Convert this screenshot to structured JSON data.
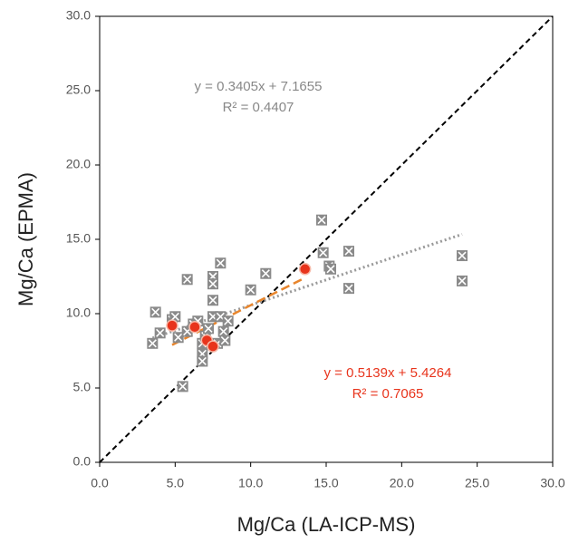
{
  "chart_data": {
    "type": "scatter",
    "x_label": "Mg/Ca (LA-ICP-MS)",
    "y_label": "Mg/Ca (EPMA)",
    "xlim": [
      0,
      30
    ],
    "ylim": [
      0,
      30
    ],
    "xticks": [
      {
        "value": 0,
        "label": "0.0"
      },
      {
        "value": 5,
        "label": "5.0"
      },
      {
        "value": 10,
        "label": "10.0"
      },
      {
        "value": 15,
        "label": "15.0"
      },
      {
        "value": 20,
        "label": "20.0"
      },
      {
        "value": 25,
        "label": "25.0"
      },
      {
        "value": 30,
        "label": "30.0"
      }
    ],
    "yticks": [
      {
        "value": 0,
        "label": "0.0"
      },
      {
        "value": 5,
        "label": "5.0"
      },
      {
        "value": 10,
        "label": "10.0"
      },
      {
        "value": 15,
        "label": "15.0"
      },
      {
        "value": 20,
        "label": "20.0"
      },
      {
        "value": 25,
        "label": "25.0"
      },
      {
        "value": 30,
        "label": "30.0"
      }
    ],
    "series": [
      {
        "color": "#8a8a8a",
        "marker": "square",
        "x": [
          3.5,
          3.7,
          4.0,
          4.8,
          5.0,
          5.2,
          5.5,
          5.8,
          5.8,
          6.2,
          6.5,
          6.8,
          6.8,
          6.8,
          7.0,
          7.2,
          7.5,
          7.5,
          7.5,
          7.5,
          7.8,
          8.0,
          8.0,
          8.2,
          8.3,
          8.5,
          10.0,
          11.0,
          14.7,
          14.8,
          15.2,
          15.3,
          16.5,
          16.5,
          24.0,
          24.0
        ],
        "values": [
          8.0,
          10.1,
          8.7,
          9.6,
          9.8,
          8.4,
          5.1,
          12.3,
          8.8,
          9.3,
          9.5,
          8.0,
          7.3,
          6.8,
          8.5,
          9.0,
          12.5,
          12.0,
          10.9,
          9.8,
          8.0,
          13.4,
          9.8,
          8.8,
          8.2,
          9.5,
          11.6,
          12.7,
          16.3,
          14.1,
          13.2,
          13.0,
          14.2,
          11.7,
          13.9,
          12.2
        ]
      },
      {
        "color": "#e8341c",
        "marker": "circle",
        "x": [
          4.8,
          6.3,
          7.1,
          7.5,
          13.6
        ],
        "values": [
          9.2,
          9.1,
          8.2,
          7.8,
          13.0
        ]
      }
    ],
    "trendlines": [
      {
        "color": "#999999",
        "style": "dotted",
        "slope": 0.3405,
        "intercept": 7.1655,
        "x_range": [
          3.5,
          24.0
        ],
        "equation": "y = 0.3405x + 7.1655",
        "r2": "R² = 0.4407"
      },
      {
        "color": "#e8852c",
        "style": "dashed",
        "slope": 0.5139,
        "intercept": 5.4264,
        "x_range": [
          4.8,
          13.6
        ],
        "equation": "y = 0.5139x + 5.4264",
        "r2": "R² = 0.7065"
      }
    ],
    "identity_line": true
  }
}
